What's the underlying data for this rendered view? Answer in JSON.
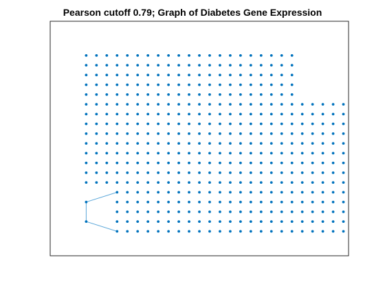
{
  "chart_data": {
    "type": "scatter",
    "title": "Pearson cutoff 0.79; Graph of Diabetes Gene Expression",
    "xlabel": "",
    "ylabel": "",
    "xlim": [
      0.5,
      29.5
    ],
    "ylim": [
      0.5,
      24.5
    ],
    "grid": false,
    "axis_ticks": false,
    "node_color": "#0072BD",
    "edge_color": "#5BA7D9",
    "box_color": "#262626",
    "blocks": [
      {
        "name": "left-upper",
        "columns": [
          4,
          7
        ],
        "rows": [
          8,
          21
        ]
      },
      {
        "name": "top",
        "columns": [
          8,
          24
        ],
        "rows": [
          17,
          21
        ]
      },
      {
        "name": "middle",
        "columns": [
          8,
          29
        ],
        "rows": [
          8,
          16
        ]
      },
      {
        "name": "bottom",
        "columns": [
          7,
          29
        ],
        "rows": [
          3,
          7
        ]
      }
    ],
    "extra_nodes": [
      {
        "x": 4,
        "y": 6
      },
      {
        "x": 4,
        "y": 4
      }
    ],
    "edges": [
      [
        {
          "x": 4,
          "y": 6
        },
        {
          "x": 4,
          "y": 4
        }
      ],
      [
        {
          "x": 4,
          "y": 6
        },
        {
          "x": 7,
          "y": 7
        }
      ],
      [
        {
          "x": 4,
          "y": 4
        },
        {
          "x": 7,
          "y": 3
        }
      ]
    ]
  }
}
